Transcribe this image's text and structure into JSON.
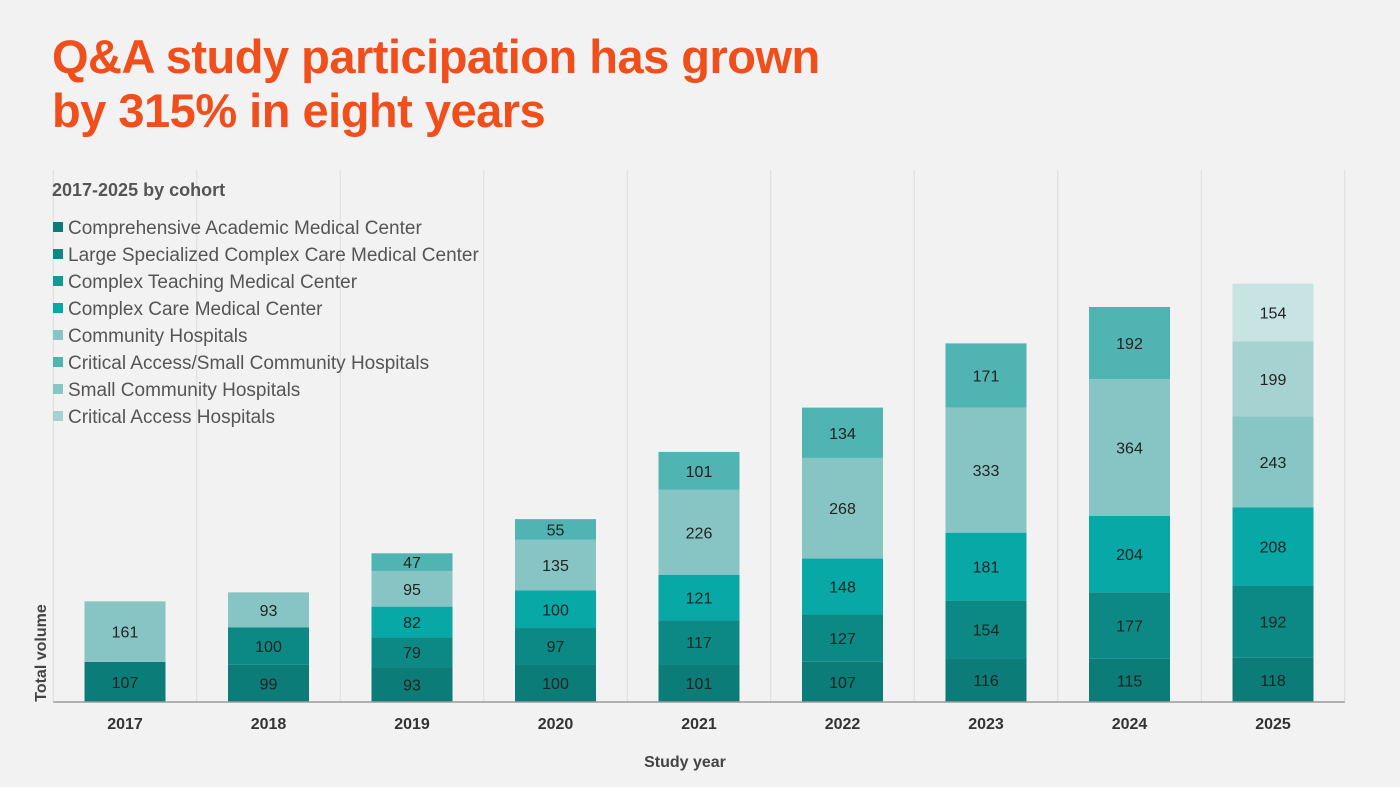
{
  "headline": {
    "line1": "Q&A study participation has grown",
    "line2": "by 315% in eight years"
  },
  "chart_data": {
    "type": "bar",
    "stacked": true,
    "subtitle": "2017-2025 by cohort",
    "xlabel": "Study year",
    "ylabel": "Total volume",
    "ylim": [
      0,
      1400
    ],
    "grid": "vertical",
    "legend_position": "top-left",
    "categories": [
      "2017",
      "2018",
      "2019",
      "2020",
      "2021",
      "2022",
      "2023",
      "2024",
      "2025"
    ],
    "series": [
      {
        "name": "Comprehensive Academic Medical Center",
        "color": "#0b7c78",
        "values": [
          107,
          99,
          93,
          100,
          101,
          107,
          116,
          115,
          118
        ]
      },
      {
        "name": "Large Specialized Complex Care Medical Center",
        "color": "#0d8985",
        "values": [
          null,
          100,
          79,
          97,
          117,
          127,
          154,
          177,
          192
        ]
      },
      {
        "name": "Complex Teaching Medical Center",
        "color": "#149893",
        "values": [
          null,
          null,
          null,
          null,
          null,
          null,
          null,
          null,
          null
        ]
      },
      {
        "name": "Complex Care Medical Center",
        "color": "#07a8a5",
        "values": [
          null,
          null,
          82,
          100,
          121,
          148,
          181,
          204,
          208
        ]
      },
      {
        "name": "Community Hospitals",
        "color": "#87c5c4",
        "values": [
          161,
          93,
          95,
          135,
          226,
          268,
          333,
          364,
          null
        ]
      },
      {
        "name": "Critical Access/Small Community Hospitals",
        "color": "#50b4b2",
        "values": [
          null,
          null,
          47,
          55,
          101,
          134,
          171,
          192,
          null
        ]
      },
      {
        "name": "Small Community Hospitals",
        "color": "#87c6c4",
        "values": [
          null,
          null,
          null,
          null,
          null,
          null,
          null,
          null,
          243
        ]
      },
      {
        "name": "Critical Access Hospitals",
        "color": "#a6d3d2",
        "values": [
          null,
          null,
          null,
          null,
          null,
          null,
          null,
          null,
          199
        ]
      },
      {
        "name": "",
        "color": "#c7e3e3",
        "values": [
          null,
          null,
          null,
          null,
          null,
          null,
          null,
          null,
          154
        ]
      }
    ]
  }
}
